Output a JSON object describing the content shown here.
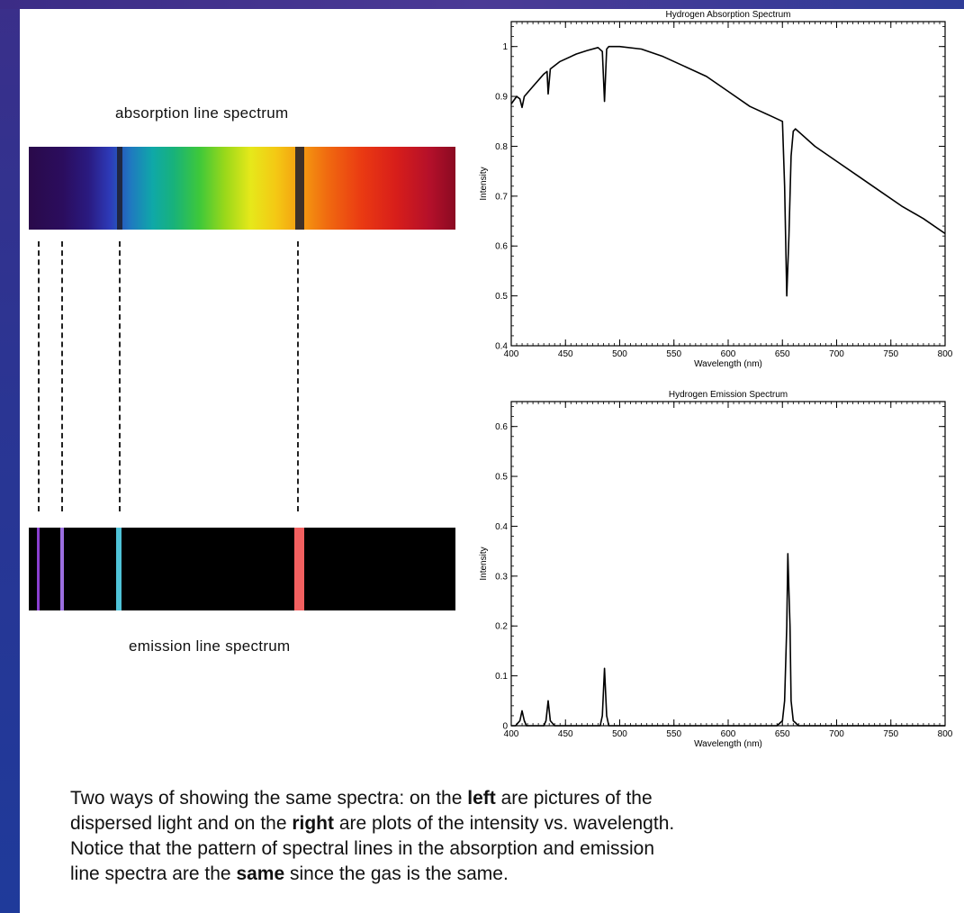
{
  "labels": {
    "absorption": "absorption line spectrum",
    "emission": "emission line spectrum"
  },
  "spectrum_strips": {
    "absorption_lines_px": [],
    "lines": [
      {
        "name": "violet-1",
        "emission_color": "#8a3fd0"
      },
      {
        "name": "violet-2",
        "emission_color": "#9b6fe0"
      },
      {
        "name": "cyan",
        "emission_color": "#4fc3d8"
      },
      {
        "name": "red",
        "emission_color": "#f26060"
      }
    ]
  },
  "caption": {
    "line1_a": "Two ways of showing the same spectra: on the ",
    "line1_b": "left",
    "line1_c": " are pictures of the",
    "line2_a": "dispersed light and on the ",
    "line2_b": "right",
    "line2_c": " are plots of the intensity vs. wavelength.",
    "line3": "Notice that the pattern of spectral lines in the absorption and emission",
    "line4_a": "line spectra are the ",
    "line4_b": "same",
    "line4_c": " since the gas is the same."
  },
  "chart_data": [
    {
      "type": "line",
      "title": "Hydrogen Absorption Spectrum",
      "xlabel": "Wavelength (nm)",
      "ylabel": "Intensity",
      "xlim": [
        400,
        800
      ],
      "ylim": [
        0.4,
        1.05
      ],
      "xticks": [
        400,
        450,
        500,
        550,
        600,
        650,
        700,
        750,
        800
      ],
      "yticks": [
        0.4,
        0.5,
        0.6,
        0.7,
        0.8,
        0.9,
        1
      ],
      "ytick_labels": [
        "0.4",
        "0.5",
        "0.6",
        "0.7",
        "0.8",
        "0.9",
        "1"
      ],
      "x": [
        400,
        405,
        408,
        410,
        412,
        420,
        430,
        433,
        434,
        436,
        445,
        460,
        470,
        480,
        484,
        486,
        488,
        490,
        500,
        520,
        540,
        560,
        580,
        600,
        620,
        640,
        650,
        652,
        654,
        656,
        658,
        660,
        662,
        680,
        700,
        720,
        740,
        760,
        780,
        800
      ],
      "y": [
        0.885,
        0.9,
        0.895,
        0.878,
        0.9,
        0.92,
        0.945,
        0.95,
        0.905,
        0.955,
        0.97,
        0.985,
        0.992,
        0.998,
        0.99,
        0.89,
        0.995,
        1.0,
        1.0,
        0.995,
        0.98,
        0.96,
        0.94,
        0.91,
        0.88,
        0.86,
        0.85,
        0.72,
        0.5,
        0.62,
        0.78,
        0.83,
        0.835,
        0.8,
        0.77,
        0.74,
        0.71,
        0.68,
        0.655,
        0.625
      ]
    },
    {
      "type": "line",
      "title": "Hydrogen Emission Spectrum",
      "xlabel": "Wavelength (nm)",
      "ylabel": "Intensity",
      "xlim": [
        400,
        800
      ],
      "ylim": [
        0,
        0.65
      ],
      "xticks": [
        400,
        450,
        500,
        550,
        600,
        650,
        700,
        750,
        800
      ],
      "yticks": [
        0,
        0.1,
        0.2,
        0.3,
        0.4,
        0.5,
        0.6
      ],
      "ytick_labels": [
        "0",
        "0.1",
        "0.2",
        "0.3",
        "0.4",
        "0.5",
        "0.6"
      ],
      "x": [
        400,
        404,
        406,
        408,
        410,
        412,
        414,
        420,
        430,
        432,
        434,
        436,
        440,
        470,
        482,
        484,
        486,
        488,
        490,
        500,
        600,
        645,
        650,
        652,
        654,
        655,
        656,
        657,
        658,
        660,
        665,
        700,
        800
      ],
      "y": [
        0,
        0,
        0.005,
        0.01,
        0.03,
        0.01,
        0,
        0,
        0,
        0.01,
        0.05,
        0.01,
        0,
        0,
        0,
        0.02,
        0.115,
        0.02,
        0,
        0,
        0,
        0,
        0.01,
        0.05,
        0.2,
        0.345,
        0.27,
        0.2,
        0.05,
        0.01,
        0,
        0,
        0
      ]
    }
  ]
}
